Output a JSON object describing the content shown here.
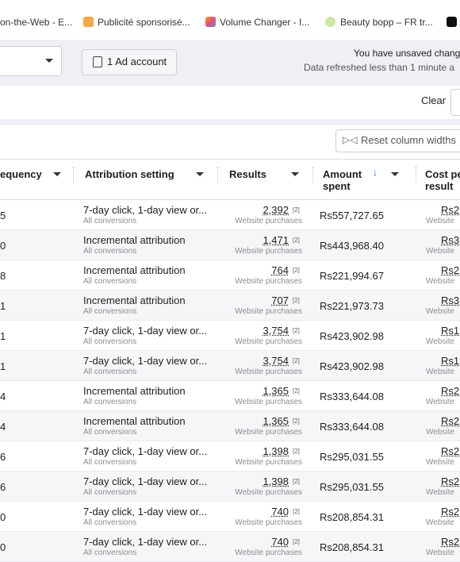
{
  "bookmarks": [
    "on-the-Web - E...",
    "Publicité sponsorisé...",
    "Volume Changer - I...",
    "Beauty bopp – FR tr..."
  ],
  "toolbar": {
    "ad_account_button": "1 Ad account",
    "notice_line_1": "You have unsaved chang",
    "notice_line_2": "Data refreshed less than 1 minute a",
    "clear": "Clear",
    "reset_button": "Reset column widths"
  },
  "table": {
    "columns": [
      "equency",
      "Attribution setting",
      "Results",
      "Amount spent",
      "Cost per result"
    ],
    "rows": [
      {
        "frequency": "5",
        "attribution": "7-day click, 1-day view or...",
        "attribution_sub": "All conversions",
        "results": "2,392",
        "results_note": "[2]",
        "results_sub": "Website purchases",
        "amount": "Rs557,727.65",
        "cost": "Rs2",
        "cost_sub": "Website"
      },
      {
        "frequency": "0",
        "attribution": "Incremental attribution",
        "attribution_sub": "All conversions",
        "results": "1,471",
        "results_note": "[2]",
        "results_sub": "Website purchases",
        "amount": "Rs443,968.40",
        "cost": "Rs3",
        "cost_sub": "Website"
      },
      {
        "frequency": "8",
        "attribution": "Incremental attribution",
        "attribution_sub": "All conversions",
        "results": "764",
        "results_note": "[2]",
        "results_sub": "Website purchases",
        "amount": "Rs221,994.67",
        "cost": "Rs2",
        "cost_sub": "Website"
      },
      {
        "frequency": "1",
        "attribution": "Incremental attribution",
        "attribution_sub": "All conversions",
        "results": "707",
        "results_note": "[2]",
        "results_sub": "Website purchases",
        "amount": "Rs221,973.73",
        "cost": "Rs3",
        "cost_sub": "Website"
      },
      {
        "frequency": "1",
        "attribution": "7-day click, 1-day view or...",
        "attribution_sub": "All conversions",
        "results": "3,754",
        "results_note": "[2]",
        "results_sub": "Website purchases",
        "amount": "Rs423,902.98",
        "cost": "Rs1",
        "cost_sub": "Website"
      },
      {
        "frequency": "1",
        "attribution": "7-day click, 1-day view or...",
        "attribution_sub": "All conversions",
        "results": "3,754",
        "results_note": "[2]",
        "results_sub": "Website purchases",
        "amount": "Rs423,902.98",
        "cost": "Rs1",
        "cost_sub": "Website"
      },
      {
        "frequency": "4",
        "attribution": "Incremental attribution",
        "attribution_sub": "All conversions",
        "results": "1,365",
        "results_note": "[2]",
        "results_sub": "Website purchases",
        "amount": "Rs333,644.08",
        "cost": "Rs2",
        "cost_sub": "Website"
      },
      {
        "frequency": "4",
        "attribution": "Incremental attribution",
        "attribution_sub": "All conversions",
        "results": "1,365",
        "results_note": "[2]",
        "results_sub": "Website purchases",
        "amount": "Rs333,644.08",
        "cost": "Rs2",
        "cost_sub": "Website"
      },
      {
        "frequency": "6",
        "attribution": "7-day click, 1-day view or...",
        "attribution_sub": "All conversions",
        "results": "1,398",
        "results_note": "[2]",
        "results_sub": "Website purchases",
        "amount": "Rs295,031.55",
        "cost": "Rs2",
        "cost_sub": "Website"
      },
      {
        "frequency": "6",
        "attribution": "7-day click, 1-day view or...",
        "attribution_sub": "All conversions",
        "results": "1,398",
        "results_note": "[2]",
        "results_sub": "Website purchases",
        "amount": "Rs295,031.55",
        "cost": "Rs2",
        "cost_sub": "Website"
      },
      {
        "frequency": "0",
        "attribution": "7-day click, 1-day view or...",
        "attribution_sub": "All conversions",
        "results": "740",
        "results_note": "[2]",
        "results_sub": "Website purchases",
        "amount": "Rs208,854.31",
        "cost": "Rs2",
        "cost_sub": "Website"
      },
      {
        "frequency": "0",
        "attribution": "7-day click, 1-day view or...",
        "attribution_sub": "All conversions",
        "results": "740",
        "results_note": "[2]",
        "results_sub": "Website purchases",
        "amount": "Rs208,854.31",
        "cost": "Rs2",
        "cost_sub": "Website"
      }
    ]
  }
}
